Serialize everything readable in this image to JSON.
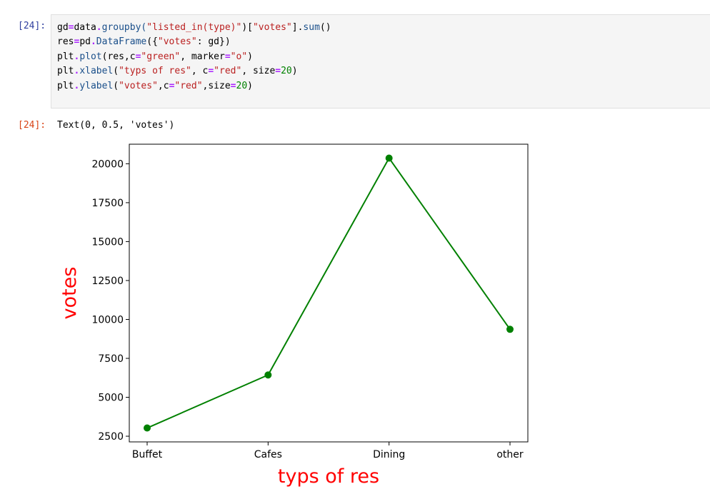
{
  "input_prompt": "[24]:",
  "output_prompt": "[24]:",
  "code_lines": [
    [
      {
        "t": "gd"
      },
      {
        "t": "=",
        "c": "op"
      },
      {
        "t": "data"
      },
      {
        "t": ".",
        "c": "op"
      },
      {
        "t": "groupby(",
        "c": "fn"
      },
      {
        "t": "\"listed_in(type)\"",
        "c": "str"
      },
      {
        "t": ")["
      },
      {
        "t": "\"votes\"",
        "c": "str"
      },
      {
        "t": "]."
      },
      {
        "t": "sum",
        "c": "fn"
      },
      {
        "t": "()"
      }
    ],
    [
      {
        "t": "res"
      },
      {
        "t": "=",
        "c": "op"
      },
      {
        "t": "pd"
      },
      {
        "t": ".",
        "c": "op"
      },
      {
        "t": "DataFrame",
        "c": "fn"
      },
      {
        "t": "({"
      },
      {
        "t": "\"votes\"",
        "c": "str"
      },
      {
        "t": ": gd})"
      }
    ],
    [
      {
        "t": "plt"
      },
      {
        "t": ".",
        "c": "op"
      },
      {
        "t": "plot",
        "c": "fn"
      },
      {
        "t": "(res,c"
      },
      {
        "t": "=",
        "c": "op"
      },
      {
        "t": "\"green\"",
        "c": "str"
      },
      {
        "t": ", marker"
      },
      {
        "t": "=",
        "c": "op"
      },
      {
        "t": "\"o\"",
        "c": "str"
      },
      {
        "t": ")"
      }
    ],
    [
      {
        "t": "plt"
      },
      {
        "t": ".",
        "c": "op"
      },
      {
        "t": "xlabel",
        "c": "fn"
      },
      {
        "t": "("
      },
      {
        "t": "\"typs of res\"",
        "c": "str"
      },
      {
        "t": ", c"
      },
      {
        "t": "=",
        "c": "op"
      },
      {
        "t": "\"red\"",
        "c": "str"
      },
      {
        "t": ", size"
      },
      {
        "t": "=",
        "c": "op"
      },
      {
        "t": "20",
        "c": "num"
      },
      {
        "t": ")"
      }
    ],
    [
      {
        "t": "plt"
      },
      {
        "t": ".",
        "c": "op"
      },
      {
        "t": "ylabel",
        "c": "fn"
      },
      {
        "t": "("
      },
      {
        "t": "\"votes\"",
        "c": "str"
      },
      {
        "t": ",c"
      },
      {
        "t": "=",
        "c": "op"
      },
      {
        "t": "\"red\"",
        "c": "str"
      },
      {
        "t": ",size"
      },
      {
        "t": "=",
        "c": "op"
      },
      {
        "t": "20",
        "c": "num"
      },
      {
        "t": ")"
      }
    ]
  ],
  "output_text": "Text(0, 0.5, 'votes')",
  "chart_data": {
    "type": "line",
    "categories": [
      "Buffet",
      "Cafes",
      "Dining",
      "other"
    ],
    "values": [
      3028,
      6434,
      20363,
      9367
    ],
    "xlabel": "typs of res",
    "ylabel": "votes",
    "yticks": [
      2500,
      5000,
      7500,
      10000,
      12500,
      15000,
      17500,
      20000
    ],
    "ylim": [
      2135,
      21256
    ],
    "line_color": "#008000",
    "label_color": "#ff0000",
    "marker": "o",
    "grid": false
  }
}
